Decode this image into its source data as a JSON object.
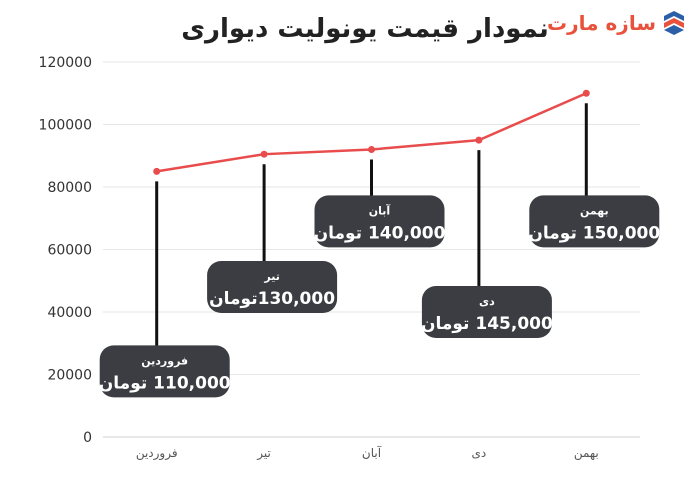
{
  "logo": {
    "text": "سازه مارت",
    "accent_color": "#e8513b",
    "mark_color": "#2b5fa8"
  },
  "chart_data": {
    "type": "line",
    "title": "نمودار قیمت یونولیت دیواری",
    "xlabel": "",
    "ylabel": "",
    "categories": [
      "فروردین",
      "تیر",
      "آبان",
      "دی",
      "بهمن"
    ],
    "series": [
      {
        "values": [
          85000,
          90500,
          92000,
          95000,
          110000
        ],
        "color": "#e84c4c"
      }
    ],
    "y_ticks": [
      0,
      20000,
      40000,
      60000,
      80000,
      100000,
      120000
    ],
    "ylim": [
      0,
      120000
    ],
    "grid": "horizontal",
    "annotations": [
      {
        "month": "فروردین",
        "price": "110,000 تومان",
        "value": 21000
      },
      {
        "month": "تیر",
        "price": "130,000تومان",
        "value": 48000
      },
      {
        "month": "آبان",
        "price": "140,000 تومان",
        "value": 69000
      },
      {
        "month": "دی",
        "price": "145,000 تومان",
        "value": 40000
      },
      {
        "month": "بهمن",
        "price": "150,000 تومان",
        "value": 69000
      }
    ],
    "annotation_color": "#3b3d42"
  }
}
